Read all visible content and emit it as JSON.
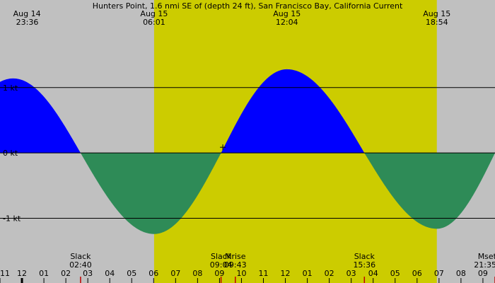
{
  "chart_data": {
    "type": "area",
    "title": "Hunters Point, 1.6 nmi SE of (depth 24 ft), San Francisco Bay, California Current",
    "x_unit": "hours after Aug 14 23:36",
    "xlim": [
      -0.6,
      21.95
    ],
    "ylim": [
      -1.99,
      2.34
    ],
    "y_ticks": [
      {
        "value": 1,
        "label": "1 kt"
      },
      {
        "value": 0,
        "label": "0 kt"
      },
      {
        "value": -1,
        "label": "-1 kt"
      }
    ],
    "daylight": {
      "start": 6.42,
      "end": 19.3
    },
    "colors": {
      "night": "#c0c0c0",
      "day": "#cccc00",
      "flood": "#0000ff",
      "ebb": "#2e8b57"
    },
    "series": [
      {
        "points": [
          {
            "x": 0.0,
            "y": 1.14
          },
          {
            "x": 3.07,
            "y": 0
          },
          {
            "x": 6.42,
            "y": -1.24
          },
          {
            "x": 9.47,
            "y": 0
          },
          {
            "x": 12.47,
            "y": 1.28
          },
          {
            "x": 16.0,
            "y": 0
          },
          {
            "x": 19.3,
            "y": -1.16
          },
          {
            "x": 21.95,
            "y": 0
          }
        ]
      }
    ],
    "top_labels": [
      {
        "x": 0.0,
        "date": "Aug 14",
        "time": "23:36"
      },
      {
        "x": 6.42,
        "date": "Aug 15",
        "time": "06:01"
      },
      {
        "x": 12.47,
        "date": "Aug 15",
        "time": "12:04"
      },
      {
        "x": 19.3,
        "date": "Aug 15",
        "time": "18:54"
      }
    ],
    "bottom_events": [
      {
        "x": 3.07,
        "name": "Slack",
        "time": "02:40"
      },
      {
        "x": 9.47,
        "name": "Slack",
        "time": "09:04"
      },
      {
        "x": 10.12,
        "name": "Mrise",
        "time": "09:43"
      },
      {
        "x": 16.0,
        "name": "Slack",
        "time": "15:36"
      },
      {
        "x": 21.95,
        "name": "Mset",
        "time": "21:35"
      }
    ],
    "hour_ticks": [
      {
        "x": -0.6,
        "label": "11"
      },
      {
        "x": 0.4,
        "label": "12"
      },
      {
        "x": 1.4,
        "label": "01"
      },
      {
        "x": 2.4,
        "label": "02"
      },
      {
        "x": 3.4,
        "label": "03"
      },
      {
        "x": 4.4,
        "label": "04"
      },
      {
        "x": 5.4,
        "label": "05"
      },
      {
        "x": 6.4,
        "label": "06"
      },
      {
        "x": 7.4,
        "label": "07"
      },
      {
        "x": 8.4,
        "label": "08"
      },
      {
        "x": 9.4,
        "label": "09"
      },
      {
        "x": 10.4,
        "label": "10"
      },
      {
        "x": 11.4,
        "label": "11"
      },
      {
        "x": 12.4,
        "label": "12"
      },
      {
        "x": 13.4,
        "label": "01"
      },
      {
        "x": 14.4,
        "label": "02"
      },
      {
        "x": 15.4,
        "label": "03"
      },
      {
        "x": 16.4,
        "label": "04"
      },
      {
        "x": 17.4,
        "label": "05"
      },
      {
        "x": 18.4,
        "label": "06"
      },
      {
        "x": 19.4,
        "label": "07"
      },
      {
        "x": 20.4,
        "label": "08"
      },
      {
        "x": 21.4,
        "label": "09"
      }
    ],
    "current_time_x": 9.55
  }
}
